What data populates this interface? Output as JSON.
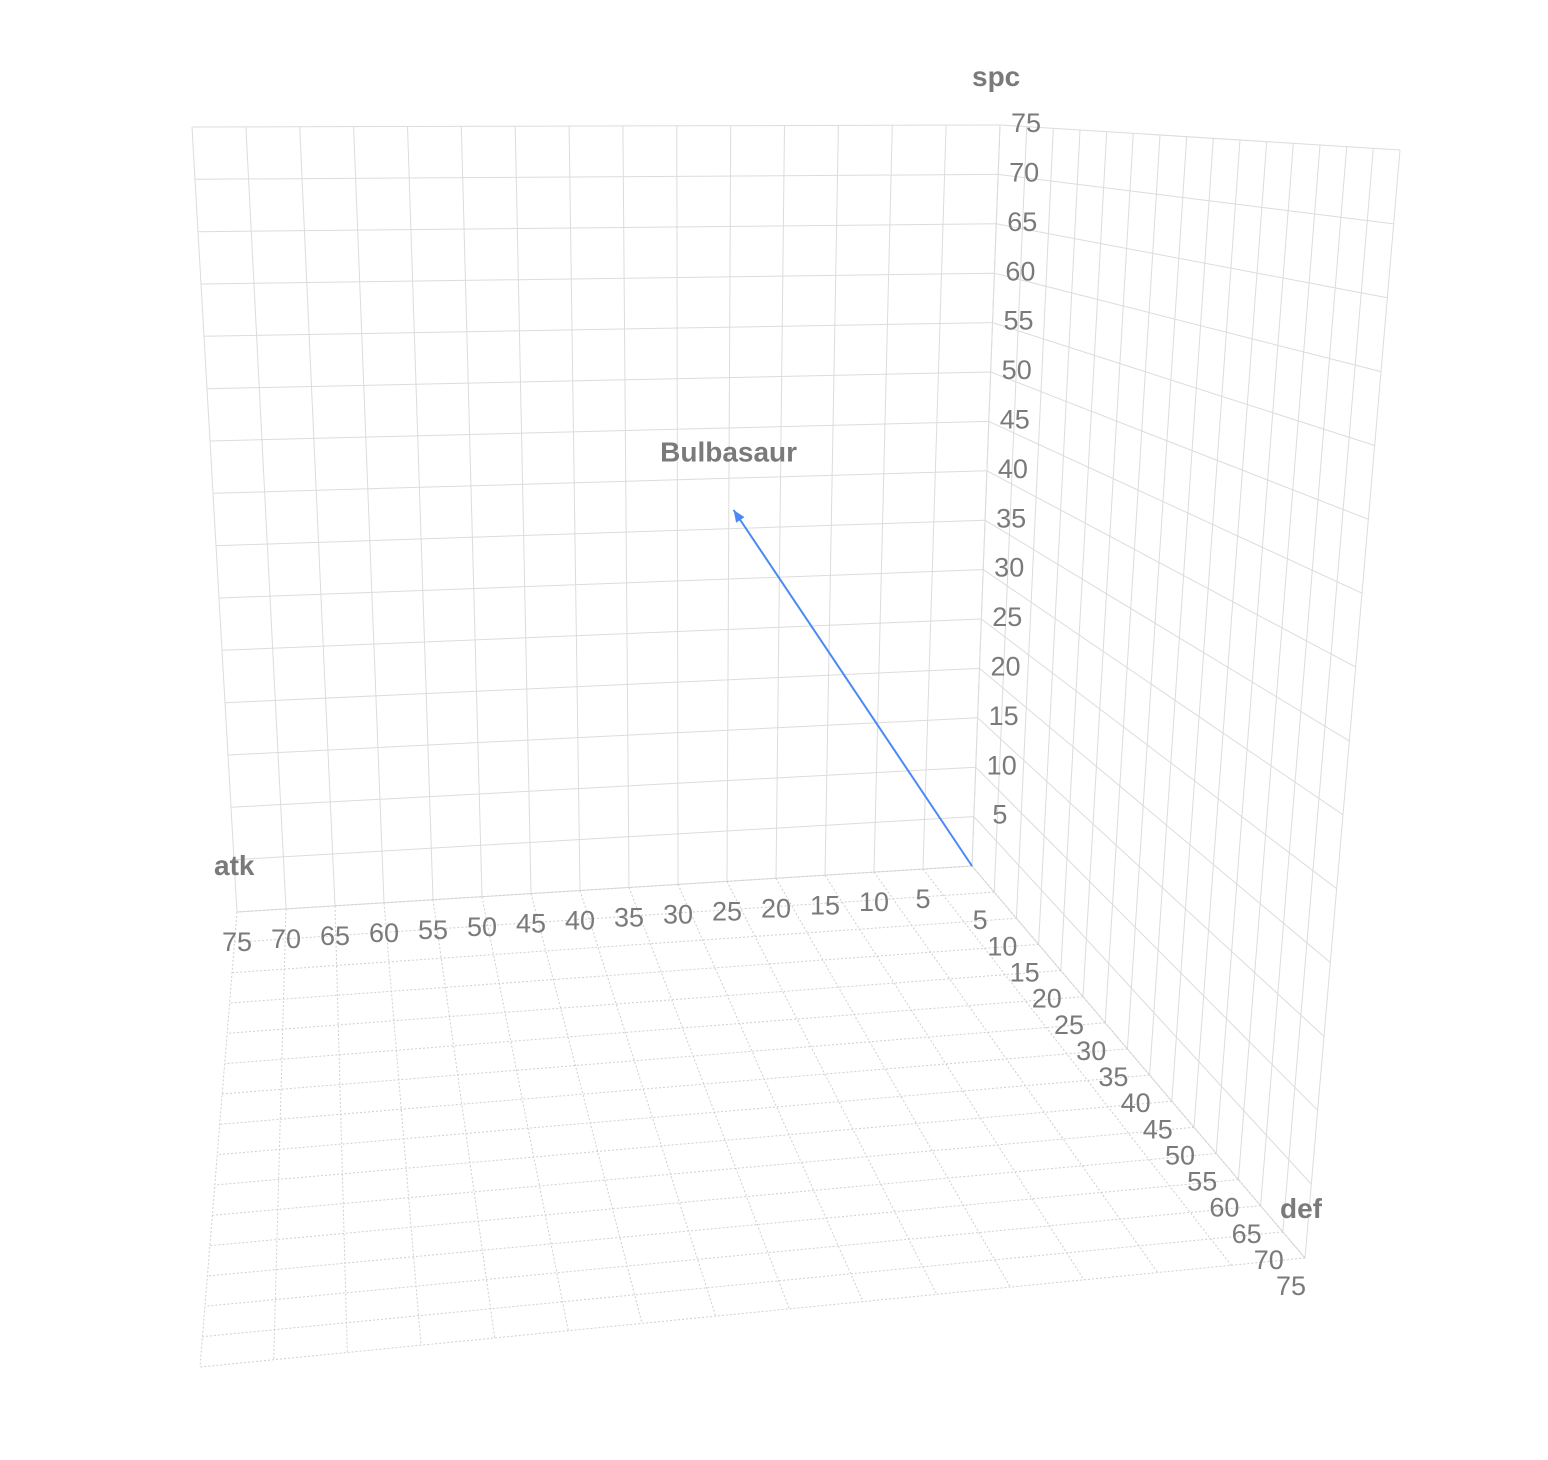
{
  "chart_data": {
    "type": "scatter",
    "subtype": "3d-vector",
    "axes": {
      "x": {
        "label": "atk",
        "range": [
          0,
          75
        ],
        "ticks": [
          5,
          10,
          15,
          20,
          25,
          30,
          35,
          40,
          45,
          50,
          55,
          60,
          65,
          70,
          75
        ]
      },
      "y": {
        "label": "def",
        "range": [
          0,
          75
        ],
        "ticks": [
          5,
          10,
          15,
          20,
          25,
          30,
          35,
          40,
          45,
          50,
          55,
          60,
          65,
          70,
          75
        ]
      },
      "z": {
        "label": "spc",
        "range": [
          0,
          75
        ],
        "ticks": [
          5,
          10,
          15,
          20,
          25,
          30,
          35,
          40,
          45,
          50,
          55,
          60,
          65,
          70,
          75
        ]
      }
    },
    "series": [
      {
        "name": "Bulbasaur",
        "color": "#4a8af4",
        "points": [
          {
            "x": 0,
            "y": 0,
            "z": 0
          },
          {
            "x": 49,
            "y": 49,
            "z": 65
          }
        ],
        "end_marker": "arrow"
      }
    ],
    "grid": true
  }
}
